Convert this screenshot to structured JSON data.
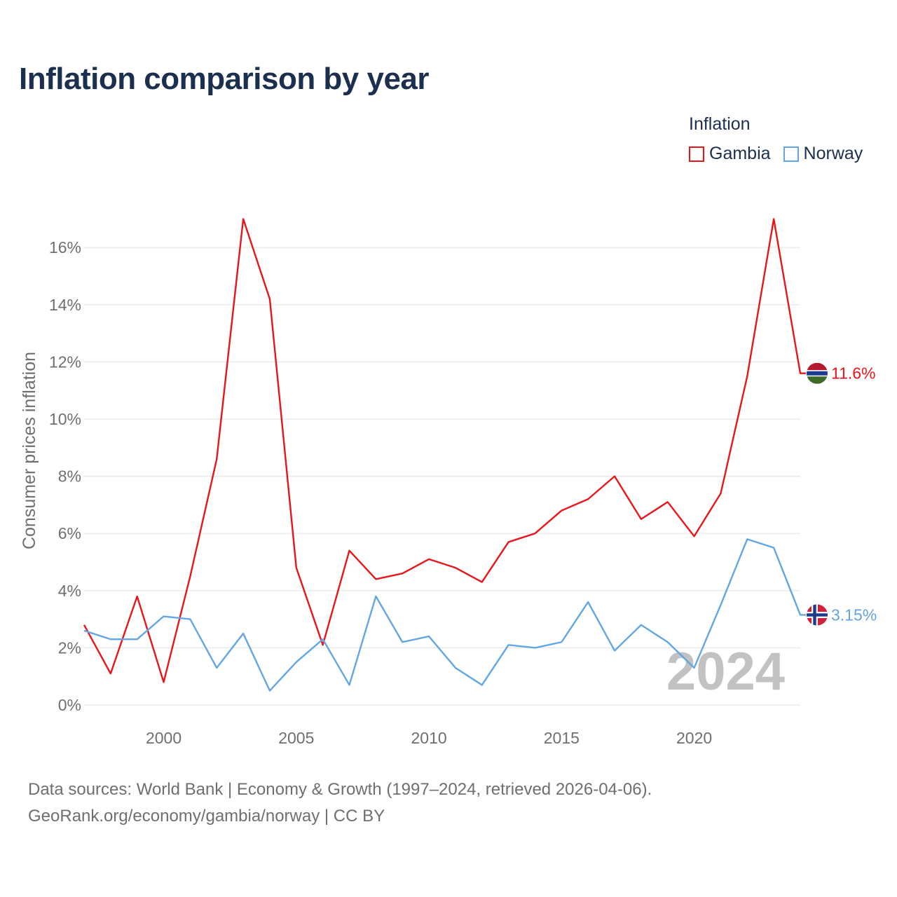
{
  "title": "Inflation comparison by year",
  "legend": {
    "title": "Inflation",
    "items": [
      {
        "name": "Gambia",
        "color": "#e8161b"
      },
      {
        "name": "Norway",
        "color": "#62a6e3"
      }
    ]
  },
  "footer": {
    "line1": "Data sources: World Bank | Economy & Growth (1997–2024, retrieved 2026-04-06).",
    "line2": "GeoRank.org/economy/gambia/norway | CC BY"
  },
  "chart_data": {
    "type": "line",
    "title": "Inflation comparison by year",
    "xlabel": "",
    "ylabel": "Consumer prices inflation",
    "xlim": [
      1997,
      2024
    ],
    "ylim": [
      0,
      17
    ],
    "yticks": [
      0,
      2,
      4,
      6,
      8,
      10,
      12,
      14,
      16
    ],
    "ytick_labels": [
      "0%",
      "2%",
      "4%",
      "6%",
      "8%",
      "10%",
      "12%",
      "14%",
      "16%"
    ],
    "xticks": [
      2000,
      2005,
      2010,
      2015,
      2020
    ],
    "xtick_labels": [
      "2000",
      "2005",
      "2010",
      "2015",
      "2020"
    ],
    "watermark_year": "2024",
    "grid": true,
    "legend_position": "top-right",
    "x": [
      1997,
      1998,
      1999,
      2000,
      2001,
      2002,
      2003,
      2004,
      2005,
      2006,
      2007,
      2008,
      2009,
      2010,
      2011,
      2012,
      2013,
      2014,
      2015,
      2016,
      2017,
      2018,
      2019,
      2020,
      2021,
      2022,
      2023,
      2024
    ],
    "series": [
      {
        "name": "Gambia",
        "color": "#e8161b",
        "end_label": "11.6%",
        "flag": "gambia-flag-icon",
        "values": [
          2.8,
          1.1,
          3.8,
          0.8,
          4.5,
          8.6,
          17.0,
          14.2,
          4.8,
          2.1,
          5.4,
          4.4,
          4.6,
          5.1,
          4.8,
          4.3,
          5.7,
          6.0,
          6.8,
          7.2,
          8.0,
          6.5,
          7.1,
          5.9,
          7.4,
          11.5,
          17.0,
          11.6
        ]
      },
      {
        "name": "Norway",
        "color": "#62a6e3",
        "end_label": "3.15%",
        "flag": "norway-flag-icon",
        "values": [
          2.6,
          2.3,
          2.3,
          3.1,
          3.0,
          1.3,
          2.5,
          0.5,
          1.5,
          2.3,
          0.7,
          3.8,
          2.2,
          2.4,
          1.3,
          0.7,
          2.1,
          2.0,
          2.2,
          3.6,
          1.9,
          2.8,
          2.2,
          1.3,
          3.5,
          5.8,
          5.5,
          3.15
        ]
      }
    ]
  }
}
